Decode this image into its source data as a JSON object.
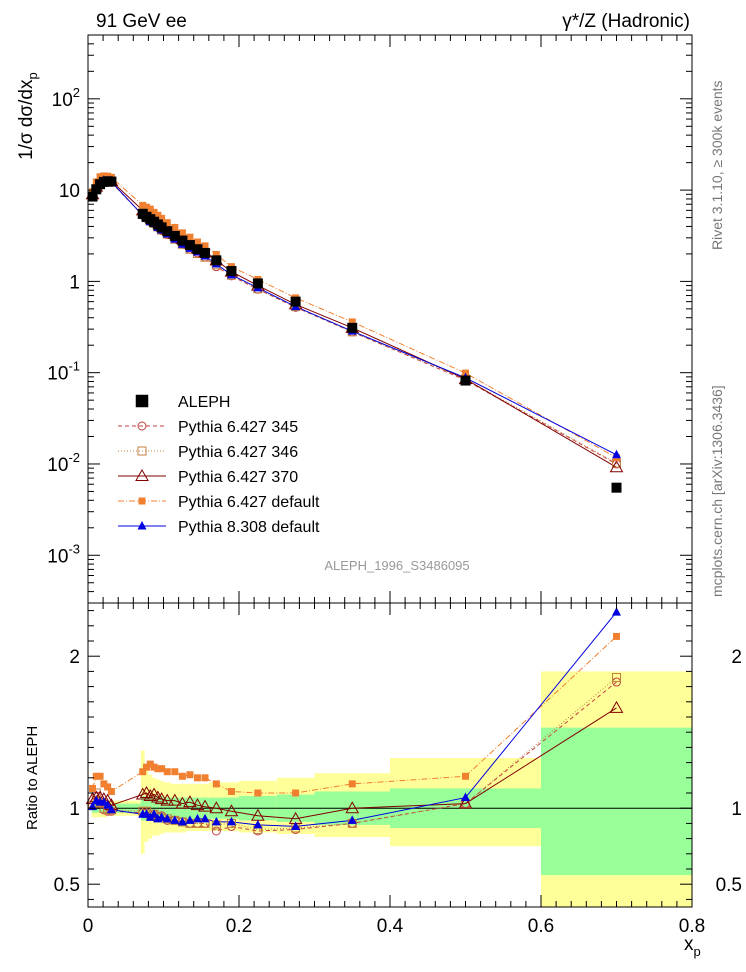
{
  "header": {
    "left": "91 GeV ee",
    "right": "γ*/Z (Hadronic)"
  },
  "side_labels": {
    "rivet": "Rivet 3.1.10, ≥ 300k events",
    "mcplots": "mcplots.cern.ch [arXiv:1306.3436]"
  },
  "analysis_label": "ALEPH_1996_S3486095",
  "colors": {
    "data": "#000000",
    "p345": "#c04040",
    "p346": "#c08040",
    "p370": "#800000",
    "p6def": "#f08030",
    "p8def": "#0000e0",
    "band_inner": "#99ff99",
    "band_outer": "#ffff99"
  },
  "chart_data": [
    {
      "type": "scatter",
      "panel": "main",
      "ylabel": "1/σ dσ/dx_p",
      "yscale": "log",
      "ylim": [
        0.0003,
        500
      ],
      "xlim": [
        0,
        0.8
      ],
      "y_ticks": [
        "10^{-3}",
        "10^{-2}",
        "10^{-1}",
        "1",
        "10",
        "10^{2}"
      ],
      "legend_position": "center-left",
      "series": [
        {
          "key": "data",
          "name": "ALEPH",
          "marker": "square",
          "x": [
            0.006,
            0.011,
            0.016,
            0.021,
            0.026,
            0.031,
            0.0725,
            0.0775,
            0.0825,
            0.0875,
            0.0925,
            0.0975,
            0.105,
            0.115,
            0.125,
            0.135,
            0.145,
            0.155,
            0.17,
            0.19,
            0.225,
            0.275,
            0.35,
            0.5,
            0.7
          ],
          "y": [
            8.5,
            10.2,
            11.6,
            12.3,
            12.5,
            12.4,
            5.5,
            5.1,
            4.8,
            4.5,
            4.2,
            3.9,
            3.55,
            3.15,
            2.8,
            2.5,
            2.25,
            2.05,
            1.7,
            1.3,
            0.95,
            0.6,
            0.31,
            0.082,
            0.0055
          ]
        },
        {
          "key": "p345",
          "name": "Pythia 6.427 345",
          "marker": "circle-open",
          "dash": "4,3",
          "x": [
            0.006,
            0.011,
            0.016,
            0.021,
            0.026,
            0.031,
            0.0725,
            0.0775,
            0.0825,
            0.0875,
            0.0925,
            0.0975,
            0.105,
            0.115,
            0.125,
            0.135,
            0.145,
            0.155,
            0.17,
            0.19,
            0.225,
            0.275,
            0.35,
            0.5,
            0.7
          ],
          "y": [
            8.4,
            10.3,
            11.9,
            12.5,
            12.6,
            12.1,
            5.3,
            4.9,
            4.5,
            4.3,
            3.9,
            3.6,
            3.25,
            2.9,
            2.55,
            2.25,
            2.05,
            1.85,
            1.45,
            1.15,
            0.82,
            0.52,
            0.28,
            0.083,
            0.01
          ]
        },
        {
          "key": "p346",
          "name": "Pythia 6.427 346",
          "marker": "square-open",
          "dash": "1,2",
          "x": [
            0.006,
            0.011,
            0.016,
            0.021,
            0.026,
            0.031,
            0.0725,
            0.0775,
            0.0825,
            0.0875,
            0.0925,
            0.0975,
            0.105,
            0.115,
            0.125,
            0.135,
            0.145,
            0.155,
            0.17,
            0.19,
            0.225,
            0.275,
            0.35,
            0.5,
            0.7
          ],
          "y": [
            8.5,
            10.4,
            12.0,
            12.7,
            12.8,
            12.3,
            5.4,
            5.0,
            4.6,
            4.3,
            3.95,
            3.65,
            3.3,
            2.9,
            2.55,
            2.25,
            2.02,
            1.84,
            1.52,
            1.17,
            0.83,
            0.53,
            0.28,
            0.085,
            0.0102
          ]
        },
        {
          "key": "p370",
          "name": "Pythia 6.427 370",
          "marker": "triangle-open",
          "dash": "",
          "x": [
            0.006,
            0.011,
            0.016,
            0.021,
            0.026,
            0.031,
            0.0725,
            0.0775,
            0.0825,
            0.0875,
            0.0925,
            0.0975,
            0.105,
            0.115,
            0.125,
            0.135,
            0.145,
            0.155,
            0.17,
            0.19,
            0.225,
            0.275,
            0.35,
            0.5,
            0.7
          ],
          "y": [
            9.0,
            10.9,
            12.4,
            13.0,
            13.1,
            12.6,
            6.0,
            5.6,
            5.2,
            4.9,
            4.5,
            4.15,
            3.75,
            3.3,
            2.9,
            2.6,
            2.3,
            2.08,
            1.7,
            1.28,
            0.9,
            0.56,
            0.31,
            0.085,
            0.0092
          ]
        },
        {
          "key": "p6def",
          "name": "Pythia 6.427 default",
          "marker": "square-small",
          "dash": "6,2,1,2",
          "x": [
            0.006,
            0.011,
            0.016,
            0.021,
            0.026,
            0.031,
            0.0725,
            0.0775,
            0.0825,
            0.0875,
            0.0925,
            0.0975,
            0.105,
            0.115,
            0.125,
            0.135,
            0.145,
            0.155,
            0.17,
            0.19,
            0.225,
            0.275,
            0.35,
            0.5,
            0.7
          ],
          "y": [
            9.6,
            12.3,
            14.0,
            14.3,
            14.2,
            13.8,
            6.8,
            6.5,
            6.2,
            5.7,
            5.3,
            4.9,
            4.4,
            3.9,
            3.4,
            3.05,
            2.7,
            2.45,
            1.97,
            1.45,
            1.05,
            0.66,
            0.36,
            0.099,
            0.0117
          ]
        },
        {
          "key": "p8def",
          "name": "Pythia 8.308 default",
          "marker": "triangle",
          "dash": "",
          "x": [
            0.006,
            0.011,
            0.016,
            0.021,
            0.026,
            0.031,
            0.0725,
            0.0775,
            0.0825,
            0.0875,
            0.0925,
            0.0975,
            0.105,
            0.115,
            0.125,
            0.135,
            0.145,
            0.155,
            0.17,
            0.19,
            0.225,
            0.275,
            0.35,
            0.5,
            0.7
          ],
          "y": [
            8.6,
            10.7,
            12.1,
            12.8,
            12.7,
            12.3,
            5.3,
            4.9,
            4.5,
            4.3,
            3.9,
            3.65,
            3.3,
            2.9,
            2.55,
            2.3,
            2.1,
            1.9,
            1.55,
            1.18,
            0.85,
            0.53,
            0.285,
            0.088,
            0.0126
          ]
        }
      ]
    },
    {
      "type": "line",
      "panel": "ratio",
      "xlabel": "x_p",
      "ylabel": "Ratio to ALEPH",
      "ylim": [
        0.35,
        2.35
      ],
      "xlim": [
        0,
        0.8
      ],
      "x_ticks": [
        "0",
        "0.2",
        "0.4",
        "0.6",
        "0.8"
      ],
      "y_ticks": [
        "0.5",
        "1",
        "2"
      ],
      "bands": {
        "edges": [
          0.005,
          0.01,
          0.015,
          0.02,
          0.025,
          0.03,
          0.035,
          0.07,
          0.075,
          0.08,
          0.085,
          0.09,
          0.095,
          0.1,
          0.11,
          0.12,
          0.13,
          0.14,
          0.15,
          0.16,
          0.18,
          0.2,
          0.25,
          0.3,
          0.4,
          0.6,
          0.8
        ],
        "inner": [
          [
            0.97,
            1.03
          ],
          [
            0.97,
            1.03
          ],
          [
            0.97,
            1.03
          ],
          [
            0.97,
            1.03
          ],
          [
            0.97,
            1.03
          ],
          [
            0.97,
            1.03
          ],
          [
            0.97,
            1.03
          ],
          [
            0.92,
            1.08
          ],
          [
            0.92,
            1.08
          ],
          [
            0.92,
            1.08
          ],
          [
            0.92,
            1.08
          ],
          [
            0.92,
            1.08
          ],
          [
            0.92,
            1.08
          ],
          [
            0.93,
            1.07
          ],
          [
            0.93,
            1.07
          ],
          [
            0.93,
            1.07
          ],
          [
            0.93,
            1.07
          ],
          [
            0.93,
            1.07
          ],
          [
            0.93,
            1.07
          ],
          [
            0.93,
            1.07
          ],
          [
            0.93,
            1.07
          ],
          [
            0.92,
            1.08
          ],
          [
            0.91,
            1.09
          ],
          [
            0.89,
            1.11
          ],
          [
            0.87,
            1.13
          ],
          [
            0.56,
            1.53
          ]
        ],
        "outer": [
          [
            0.94,
            1.06
          ],
          [
            0.94,
            1.06
          ],
          [
            0.94,
            1.06
          ],
          [
            0.94,
            1.06
          ],
          [
            0.95,
            1.05
          ],
          [
            0.95,
            1.05
          ],
          [
            0.95,
            1.05
          ],
          [
            0.7,
            1.38
          ],
          [
            0.78,
            1.25
          ],
          [
            0.8,
            1.22
          ],
          [
            0.82,
            1.2
          ],
          [
            0.82,
            1.19
          ],
          [
            0.83,
            1.18
          ],
          [
            0.84,
            1.17
          ],
          [
            0.84,
            1.16
          ],
          [
            0.84,
            1.16
          ],
          [
            0.85,
            1.16
          ],
          [
            0.85,
            1.16
          ],
          [
            0.85,
            1.16
          ],
          [
            0.85,
            1.17
          ],
          [
            0.85,
            1.17
          ],
          [
            0.84,
            1.18
          ],
          [
            0.83,
            1.2
          ],
          [
            0.81,
            1.23
          ],
          [
            0.75,
            1.33
          ],
          [
            0.35,
            1.9
          ]
        ]
      },
      "series": [
        {
          "key": "p345",
          "x": [
            0.006,
            0.011,
            0.016,
            0.021,
            0.026,
            0.031,
            0.0725,
            0.0775,
            0.0825,
            0.0875,
            0.0925,
            0.0975,
            0.105,
            0.115,
            0.125,
            0.135,
            0.145,
            0.155,
            0.17,
            0.19,
            0.225,
            0.275,
            0.35,
            0.5,
            0.7
          ],
          "y": [
            1.02,
            1.08,
            1.03,
            0.99,
            0.98,
            0.98,
            0.97,
            0.97,
            0.95,
            0.96,
            0.94,
            0.95,
            0.92,
            0.92,
            0.91,
            0.9,
            0.9,
            0.9,
            0.85,
            0.88,
            0.85,
            0.86,
            0.9,
            1.03,
            1.83
          ]
        },
        {
          "key": "p346",
          "x": [
            0.006,
            0.011,
            0.016,
            0.021,
            0.026,
            0.031,
            0.0725,
            0.0775,
            0.0825,
            0.0875,
            0.0925,
            0.0975,
            0.105,
            0.115,
            0.125,
            0.135,
            0.145,
            0.155,
            0.17,
            0.19,
            0.225,
            0.275,
            0.35,
            0.5,
            0.7
          ],
          "y": [
            1.02,
            1.1,
            1.04,
            1.0,
            0.99,
            0.99,
            0.98,
            0.98,
            0.96,
            0.96,
            0.94,
            0.94,
            0.93,
            0.92,
            0.91,
            0.9,
            0.9,
            0.9,
            0.89,
            0.9,
            0.86,
            0.87,
            0.9,
            1.03,
            1.86
          ]
        },
        {
          "key": "p370",
          "x": [
            0.006,
            0.011,
            0.016,
            0.021,
            0.026,
            0.031,
            0.0725,
            0.0775,
            0.0825,
            0.0875,
            0.0925,
            0.0975,
            0.105,
            0.115,
            0.125,
            0.135,
            0.145,
            0.155,
            0.17,
            0.19,
            0.225,
            0.275,
            0.35,
            0.5,
            0.7
          ],
          "y": [
            1.06,
            1.07,
            1.07,
            1.06,
            1.05,
            1.02,
            1.09,
            1.1,
            1.08,
            1.09,
            1.07,
            1.06,
            1.05,
            1.05,
            1.03,
            1.04,
            1.02,
            1.01,
            1.0,
            0.98,
            0.95,
            0.93,
            1.0,
            1.03,
            1.66
          ]
        },
        {
          "key": "p6def",
          "x": [
            0.006,
            0.011,
            0.016,
            0.021,
            0.026,
            0.031,
            0.0725,
            0.0775,
            0.0825,
            0.0875,
            0.0925,
            0.0975,
            0.105,
            0.115,
            0.125,
            0.135,
            0.145,
            0.155,
            0.17,
            0.19,
            0.225,
            0.275,
            0.35,
            0.5,
            0.7
          ],
          "y": [
            1.13,
            1.21,
            1.21,
            1.16,
            1.14,
            1.11,
            1.24,
            1.27,
            1.29,
            1.27,
            1.26,
            1.26,
            1.24,
            1.24,
            1.21,
            1.22,
            1.2,
            1.2,
            1.16,
            1.11,
            1.1,
            1.1,
            1.16,
            1.21,
            2.13
          ]
        },
        {
          "key": "p8def",
          "x": [
            0.006,
            0.011,
            0.016,
            0.021,
            0.026,
            0.031,
            0.0725,
            0.0775,
            0.0825,
            0.0875,
            0.0925,
            0.0975,
            0.105,
            0.115,
            0.125,
            0.135,
            0.145,
            0.155,
            0.17,
            0.19,
            0.225,
            0.275,
            0.35,
            0.5,
            0.7
          ],
          "y": [
            1.01,
            1.05,
            1.04,
            1.04,
            1.02,
            0.99,
            0.96,
            0.96,
            0.94,
            0.96,
            0.93,
            0.94,
            0.93,
            0.92,
            0.91,
            0.92,
            0.93,
            0.93,
            0.91,
            0.91,
            0.89,
            0.88,
            0.92,
            1.07,
            2.29
          ]
        }
      ]
    }
  ]
}
